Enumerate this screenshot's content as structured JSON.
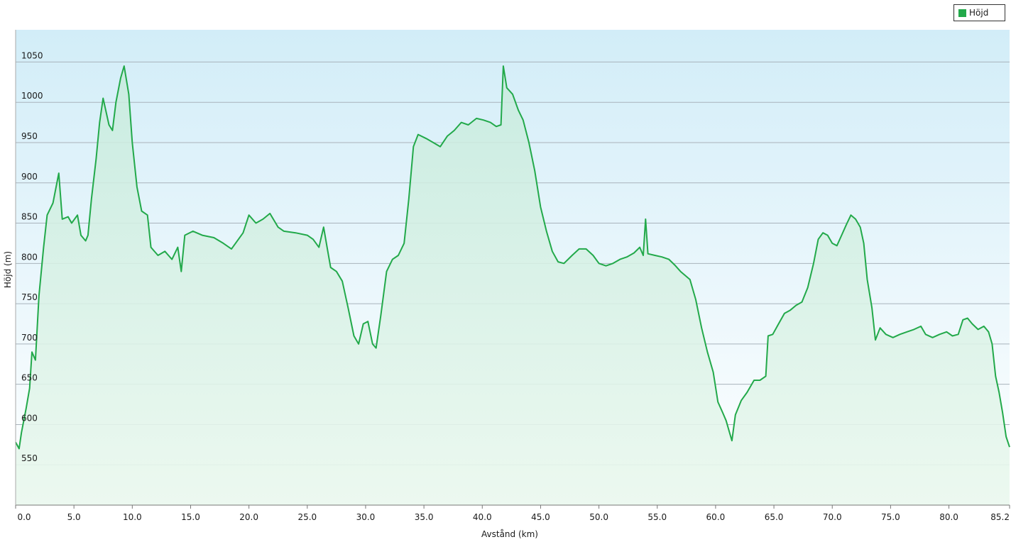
{
  "legend": {
    "label": "Höjd",
    "color": "#22a94a"
  },
  "chart_data": {
    "type": "area",
    "title": "",
    "xlabel": "Avstånd  (km)",
    "ylabel": "Höjd (m)",
    "xlim": [
      0,
      85.2
    ],
    "ylim": [
      500,
      1090
    ],
    "grid": true,
    "legend_position": "top-right",
    "x_ticks": [
      {
        "value": 0,
        "label": "0.0"
      },
      {
        "value": 5,
        "label": "5.0"
      },
      {
        "value": 10,
        "label": "10.0"
      },
      {
        "value": 15,
        "label": "15.0"
      },
      {
        "value": 20,
        "label": "20.0"
      },
      {
        "value": 25,
        "label": "25.0"
      },
      {
        "value": 30,
        "label": "30.0"
      },
      {
        "value": 35,
        "label": "35.0"
      },
      {
        "value": 40,
        "label": "40.0"
      },
      {
        "value": 45,
        "label": "45.0"
      },
      {
        "value": 50,
        "label": "50.0"
      },
      {
        "value": 55,
        "label": "55.0"
      },
      {
        "value": 60,
        "label": "60.0"
      },
      {
        "value": 65,
        "label": "65.0"
      },
      {
        "value": 70,
        "label": "70.0"
      },
      {
        "value": 75,
        "label": "75.0"
      },
      {
        "value": 80,
        "label": "80.0"
      },
      {
        "value": 85.2,
        "label": "85.2"
      }
    ],
    "y_ticks": [
      {
        "value": 550,
        "label": "550"
      },
      {
        "value": 600,
        "label": "600"
      },
      {
        "value": 650,
        "label": "650"
      },
      {
        "value": 700,
        "label": "700"
      },
      {
        "value": 750,
        "label": "750"
      },
      {
        "value": 800,
        "label": "800"
      },
      {
        "value": 850,
        "label": "850"
      },
      {
        "value": 900,
        "label": "900"
      },
      {
        "value": 950,
        "label": "950"
      },
      {
        "value": 1000,
        "label": "1000"
      },
      {
        "value": 1050,
        "label": "1050"
      }
    ],
    "series": [
      {
        "name": "Höjd",
        "color": "#22a94a",
        "points": [
          [
            0,
            578
          ],
          [
            0.3,
            570
          ],
          [
            0.5,
            590
          ],
          [
            0.9,
            620
          ],
          [
            1.2,
            645
          ],
          [
            1.4,
            690
          ],
          [
            1.7,
            680
          ],
          [
            2.0,
            760
          ],
          [
            2.4,
            820
          ],
          [
            2.7,
            860
          ],
          [
            3.2,
            875
          ],
          [
            3.7,
            912
          ],
          [
            4.0,
            855
          ],
          [
            4.5,
            858
          ],
          [
            4.8,
            850
          ],
          [
            5.3,
            860
          ],
          [
            5.6,
            835
          ],
          [
            6.0,
            828
          ],
          [
            6.2,
            835
          ],
          [
            6.5,
            880
          ],
          [
            6.9,
            930
          ],
          [
            7.2,
            975
          ],
          [
            7.5,
            1005
          ],
          [
            8.0,
            972
          ],
          [
            8.3,
            965
          ],
          [
            8.6,
            1000
          ],
          [
            9.0,
            1030
          ],
          [
            9.3,
            1045
          ],
          [
            9.7,
            1010
          ],
          [
            10.0,
            950
          ],
          [
            10.4,
            895
          ],
          [
            10.8,
            865
          ],
          [
            11.3,
            860
          ],
          [
            11.6,
            820
          ],
          [
            12.2,
            810
          ],
          [
            12.8,
            815
          ],
          [
            13.4,
            805
          ],
          [
            13.9,
            820
          ],
          [
            14.2,
            790
          ],
          [
            14.5,
            835
          ],
          [
            15.2,
            840
          ],
          [
            16.0,
            835
          ],
          [
            17.0,
            832
          ],
          [
            17.8,
            825
          ],
          [
            18.5,
            818
          ],
          [
            19.5,
            838
          ],
          [
            20.0,
            860
          ],
          [
            20.6,
            850
          ],
          [
            21.2,
            855
          ],
          [
            21.8,
            862
          ],
          [
            22.5,
            845
          ],
          [
            23.0,
            840
          ],
          [
            24.0,
            838
          ],
          [
            25.0,
            835
          ],
          [
            25.5,
            830
          ],
          [
            26.0,
            820
          ],
          [
            26.4,
            845
          ],
          [
            26.7,
            820
          ],
          [
            27.0,
            795
          ],
          [
            27.5,
            790
          ],
          [
            28.0,
            778
          ],
          [
            28.5,
            745
          ],
          [
            29.0,
            710
          ],
          [
            29.4,
            700
          ],
          [
            29.8,
            725
          ],
          [
            30.2,
            728
          ],
          [
            30.6,
            700
          ],
          [
            30.9,
            695
          ],
          [
            31.3,
            735
          ],
          [
            31.8,
            790
          ],
          [
            32.3,
            805
          ],
          [
            32.8,
            810
          ],
          [
            33.3,
            825
          ],
          [
            33.7,
            880
          ],
          [
            34.1,
            945
          ],
          [
            34.5,
            960
          ],
          [
            35.2,
            955
          ],
          [
            35.8,
            950
          ],
          [
            36.4,
            945
          ],
          [
            37.0,
            958
          ],
          [
            37.6,
            965
          ],
          [
            38.2,
            975
          ],
          [
            38.8,
            972
          ],
          [
            39.5,
            980
          ],
          [
            40.1,
            978
          ],
          [
            40.7,
            975
          ],
          [
            41.2,
            970
          ],
          [
            41.6,
            972
          ],
          [
            41.8,
            1045
          ],
          [
            42.1,
            1018
          ],
          [
            42.6,
            1010
          ],
          [
            43.1,
            990
          ],
          [
            43.5,
            978
          ],
          [
            44.0,
            950
          ],
          [
            44.5,
            915
          ],
          [
            45.0,
            870
          ],
          [
            45.5,
            840
          ],
          [
            46.0,
            815
          ],
          [
            46.5,
            802
          ],
          [
            47.0,
            800
          ],
          [
            47.7,
            810
          ],
          [
            48.3,
            818
          ],
          [
            48.9,
            818
          ],
          [
            49.5,
            810
          ],
          [
            50.0,
            800
          ],
          [
            50.6,
            797
          ],
          [
            51.2,
            800
          ],
          [
            51.8,
            805
          ],
          [
            52.4,
            808
          ],
          [
            53.0,
            813
          ],
          [
            53.5,
            820
          ],
          [
            53.8,
            810
          ],
          [
            54.0,
            855
          ],
          [
            54.2,
            812
          ],
          [
            54.8,
            810
          ],
          [
            55.4,
            808
          ],
          [
            56.0,
            805
          ],
          [
            56.5,
            798
          ],
          [
            57.0,
            790
          ],
          [
            57.4,
            785
          ],
          [
            57.8,
            780
          ],
          [
            58.3,
            755
          ],
          [
            58.8,
            720
          ],
          [
            59.3,
            690
          ],
          [
            59.8,
            665
          ],
          [
            60.2,
            628
          ],
          [
            60.6,
            615
          ],
          [
            60.9,
            605
          ],
          [
            61.2,
            590
          ],
          [
            61.4,
            580
          ],
          [
            61.7,
            612
          ],
          [
            62.2,
            630
          ],
          [
            62.7,
            640
          ],
          [
            63.3,
            655
          ],
          [
            63.8,
            655
          ],
          [
            64.3,
            660
          ],
          [
            64.5,
            710
          ],
          [
            64.9,
            712
          ],
          [
            65.4,
            725
          ],
          [
            65.9,
            738
          ],
          [
            66.4,
            742
          ],
          [
            66.9,
            748
          ],
          [
            67.4,
            752
          ],
          [
            67.9,
            770
          ],
          [
            68.4,
            800
          ],
          [
            68.8,
            830
          ],
          [
            69.2,
            838
          ],
          [
            69.6,
            835
          ],
          [
            70.0,
            825
          ],
          [
            70.4,
            822
          ],
          [
            70.8,
            835
          ],
          [
            71.2,
            848
          ],
          [
            71.6,
            860
          ],
          [
            72.0,
            855
          ],
          [
            72.4,
            845
          ],
          [
            72.7,
            825
          ],
          [
            73.0,
            780
          ],
          [
            73.4,
            745
          ],
          [
            73.7,
            705
          ],
          [
            74.1,
            720
          ],
          [
            74.6,
            712
          ],
          [
            75.2,
            708
          ],
          [
            75.8,
            712
          ],
          [
            76.4,
            715
          ],
          [
            77.0,
            718
          ],
          [
            77.6,
            722
          ],
          [
            78.0,
            712
          ],
          [
            78.6,
            708
          ],
          [
            79.2,
            712
          ],
          [
            79.8,
            715
          ],
          [
            80.3,
            710
          ],
          [
            80.8,
            712
          ],
          [
            81.2,
            730
          ],
          [
            81.6,
            732
          ],
          [
            82.0,
            725
          ],
          [
            82.5,
            718
          ],
          [
            83.0,
            722
          ],
          [
            83.4,
            715
          ],
          [
            83.7,
            700
          ],
          [
            84.0,
            660
          ],
          [
            84.3,
            640
          ],
          [
            84.6,
            615
          ],
          [
            84.9,
            585
          ],
          [
            85.2,
            572
          ]
        ]
      }
    ]
  }
}
